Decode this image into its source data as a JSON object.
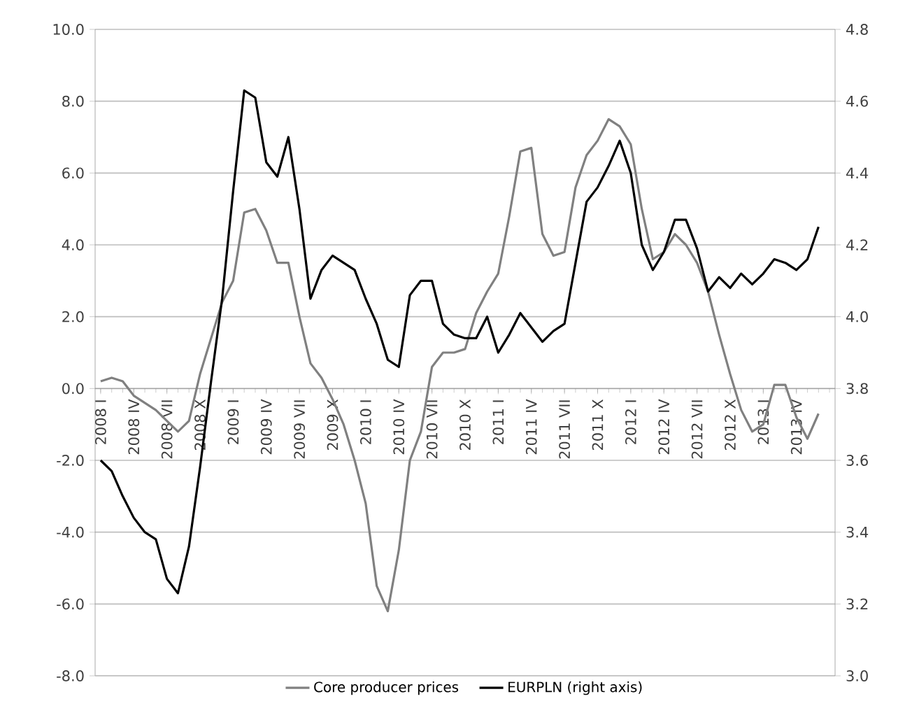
{
  "chart_data": {
    "type": "line",
    "categories": [
      "2008 I",
      null,
      null,
      "2008 IV",
      null,
      null,
      "2008 VII",
      null,
      null,
      "2008 X",
      null,
      null,
      "2009 I",
      null,
      null,
      "2009 IV",
      null,
      null,
      "2009 VII",
      null,
      null,
      "2009 X",
      null,
      null,
      "2010 I",
      null,
      null,
      "2010 IV",
      null,
      null,
      "2010 VII",
      null,
      null,
      "2010 X",
      null,
      null,
      "2011 I",
      null,
      null,
      "2011 IV",
      null,
      null,
      "2011 VII",
      null,
      null,
      "2011 X",
      null,
      null,
      "2012 I",
      null,
      null,
      "2012 IV",
      null,
      null,
      "2012 VII",
      null,
      null,
      "2012 X",
      null,
      null,
      "2013 I",
      null,
      null,
      "2013 IV",
      null,
      null,
      null
    ],
    "series": [
      {
        "name": "Core producer prices",
        "color": "#808080",
        "values": [
          0.2,
          0.3,
          0.2,
          -0.2,
          -0.4,
          -0.6,
          -0.9,
          -1.2,
          -0.9,
          0.4,
          1.4,
          2.4,
          3.0,
          4.9,
          5.0,
          4.4,
          3.5,
          3.5,
          2.0,
          0.7,
          0.3,
          -0.3,
          -1.0,
          -2.0,
          -3.2,
          -5.5,
          -6.2,
          -4.5,
          -2.0,
          -1.2,
          0.6,
          1.0,
          1.0,
          1.1,
          2.1,
          2.7,
          3.2,
          4.8,
          6.6,
          6.7,
          4.3,
          3.7,
          3.8,
          5.6,
          6.5,
          6.9,
          7.5,
          7.3,
          6.8,
          5.0,
          3.6,
          3.8,
          4.3,
          4.0,
          3.5,
          2.7,
          1.5,
          0.4,
          -0.6,
          -1.2,
          -1.0,
          0.1,
          0.1,
          -0.8,
          -1.4,
          -0.7,
          null
        ]
      },
      {
        "name": "EURPLN (right axis)",
        "color": "#000000",
        "axis": "y2",
        "values": [
          3.6,
          3.57,
          3.5,
          3.44,
          3.4,
          3.38,
          3.27,
          3.23,
          3.36,
          3.58,
          3.82,
          4.05,
          4.35,
          4.63,
          4.61,
          4.43,
          4.39,
          4.5,
          4.3,
          4.05,
          4.13,
          4.17,
          4.15,
          4.13,
          4.05,
          3.98,
          3.88,
          3.86,
          4.06,
          4.1,
          4.1,
          3.98,
          3.95,
          3.94,
          3.94,
          4.0,
          3.9,
          3.95,
          4.01,
          3.97,
          3.93,
          3.96,
          3.98,
          4.15,
          4.32,
          4.36,
          4.42,
          4.49,
          4.4,
          4.2,
          4.13,
          4.18,
          4.27,
          4.27,
          4.19,
          4.07,
          4.11,
          4.08,
          4.12,
          4.09,
          4.12,
          4.16,
          4.15,
          4.13,
          4.16,
          4.25,
          null
        ]
      }
    ],
    "ylim": [
      -8,
      10
    ],
    "yticks": [
      {
        "value": -8,
        "label": "-8.0"
      },
      {
        "value": -6,
        "label": "-6.0"
      },
      {
        "value": -4,
        "label": "-4.0"
      },
      {
        "value": -2,
        "label": "-2.0"
      },
      {
        "value": 0,
        "label": "0.0"
      },
      {
        "value": 2,
        "label": "2.0"
      },
      {
        "value": 4,
        "label": "4.0"
      },
      {
        "value": 6,
        "label": "6.0"
      },
      {
        "value": 8,
        "label": "8.0"
      },
      {
        "value": 10,
        "label": "10.0"
      }
    ],
    "y2lim": [
      3.0,
      4.8
    ],
    "y2ticks": [
      {
        "value": 3.0,
        "label": "3.0"
      },
      3.2,
      3.4,
      3.6,
      3.8,
      {
        "value": 4.0,
        "label": "4.0"
      },
      4.2,
      4.4,
      4.6,
      4.8
    ],
    "grid": "y",
    "legend": "bottom",
    "line_style": "solid",
    "marker": "none"
  }
}
